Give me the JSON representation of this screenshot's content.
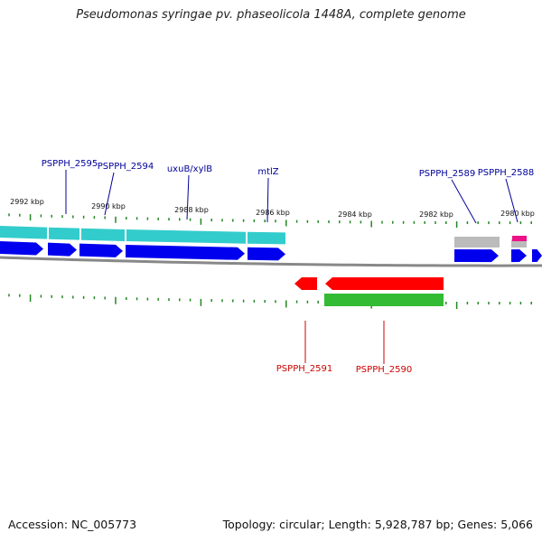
{
  "title": "Pseudomonas syringae pv. phaseolicola 1448A, complete genome",
  "footer": {
    "accession": "Accession: NC_005773",
    "summary": "Topology: circular; Length: 5,928,787 bp; Genes: 5,066"
  },
  "colors": {
    "cds_forward": "#0000ee",
    "cds_reverse": "#ff0000",
    "gene_forward": "#33cccc",
    "gene_reverse": "#33bb33",
    "gene_other": "#bbbbbb",
    "rna": "#ee1188",
    "tick": "#228822",
    "backbone": "#888888",
    "label_forward": "#000099",
    "label_reverse": "#cc0000"
  },
  "scale_labels": [
    "2992 kbp",
    "2990 kbp",
    "2988 kbp",
    "2986 kbp",
    "2984 kbp",
    "2982 kbp",
    "2980 kbp"
  ],
  "forward_genes": [
    "PSPPH_2595",
    "PSPPH_2594",
    "uxuB/xylB",
    "mtlZ",
    "PSPPH_2589",
    "PSPPH_2588"
  ],
  "reverse_genes": [
    "PSPPH_2591",
    "PSPPH_2590"
  ]
}
